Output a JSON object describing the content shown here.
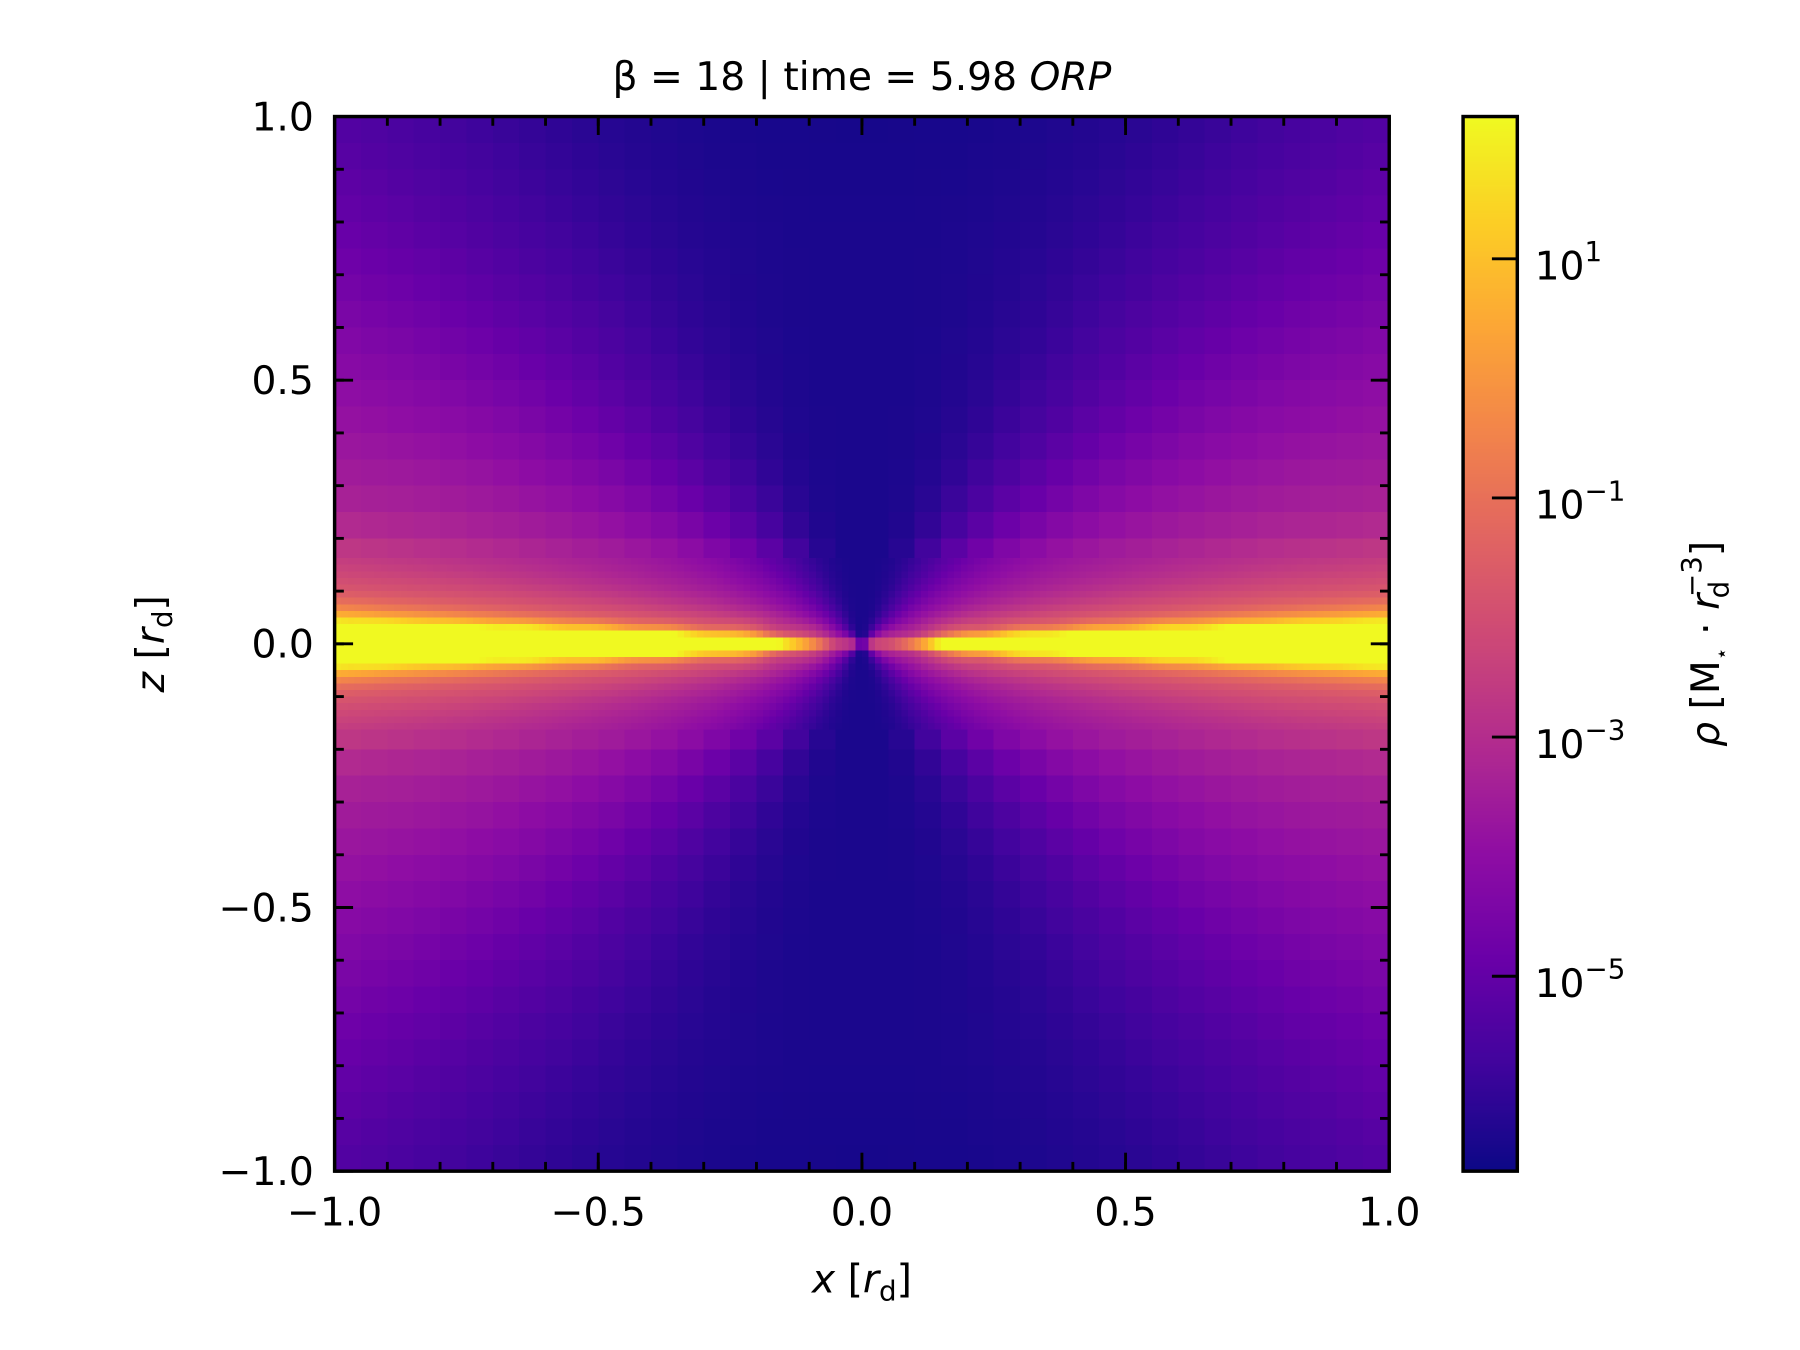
{
  "chart_data": {
    "type": "heatmap",
    "title": {
      "main": "β = 18 | time = 5.98 ",
      "unit": "ORP"
    },
    "xlabel": {
      "var": "x",
      "open": " [",
      "r": "r",
      "sub": "d",
      "close": "]"
    },
    "ylabel": {
      "var": "z",
      "open": " [",
      "r": "r",
      "sub": "d",
      "close": "]"
    },
    "xlim": [
      -1.0,
      1.0
    ],
    "ylim": [
      -1.0,
      1.0
    ],
    "xticks": [
      -1.0,
      -0.5,
      0.0,
      0.5,
      1.0
    ],
    "xtick_labels": [
      "−1.0",
      "−0.5",
      "0.0",
      "0.5",
      "1.0"
    ],
    "yticks": [
      -1.0,
      -0.5,
      0.0,
      0.5,
      1.0
    ],
    "ytick_labels": [
      "−1.0",
      "−0.5",
      "0.0",
      "0.5",
      "1.0"
    ],
    "minor_tick_step": 0.1,
    "colormap": "plasma",
    "colorbar": {
      "scale": "log",
      "log10_range": [
        -6.63,
        2.19
      ],
      "ticks_log10": [
        1,
        -1,
        -3,
        -5
      ],
      "tick_labels": [
        {
          "base": "10",
          "exp": "1"
        },
        {
          "base": "10",
          "exp": "−1"
        },
        {
          "base": "10",
          "exp": "−3"
        },
        {
          "base": "10",
          "exp": "−5"
        }
      ],
      "label": {
        "rho": "ρ",
        "open": " [M",
        "star": "⋆",
        "dot": " · ",
        "r": "r",
        "sub": "d",
        "sup": "−3",
        "close": "]"
      }
    },
    "field_description": "density: thin bright midplane disk (~10^0.5) for |x|>0.15, low-density polar funnels near x=0 (~10^-6.5), purple envelope (~10^-5 to 10^-3)"
  }
}
